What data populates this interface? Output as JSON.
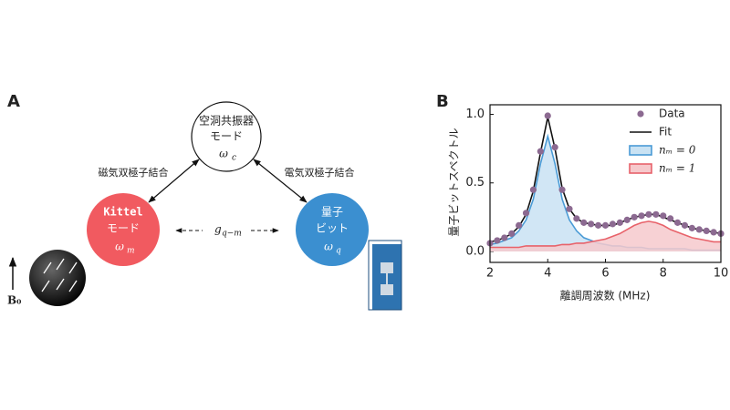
{
  "panel_a": {
    "label": "A",
    "cavity": {
      "line1": "空洞共振器",
      "line2": "モード",
      "symbol": "ω",
      "subscript": "c"
    },
    "kittel": {
      "line1": "Kittel",
      "line2": "モード",
      "symbol": "ω",
      "subscript": "m"
    },
    "qubit": {
      "line1": "量子",
      "line2": "ビット",
      "symbol": "ω",
      "subscript": "q"
    },
    "magnetic_coupling": "磁気双極子結合",
    "electric_coupling": "電気双極子結合",
    "g": {
      "symbol": "g",
      "subscript": "q−m"
    },
    "field": "B₀"
  },
  "chart_data": {
    "type": "line",
    "panel_label": "B",
    "xlabel": "離調周波数 (MHz)",
    "ylabel": "量子ビットスペクトル",
    "x": [
      2,
      2.25,
      2.5,
      2.75,
      3,
      3.25,
      3.5,
      3.75,
      4,
      4.25,
      4.5,
      4.75,
      5,
      5.25,
      5.5,
      5.75,
      6,
      6.25,
      6.5,
      6.75,
      7,
      7.25,
      7.5,
      7.75,
      8,
      8.25,
      8.5,
      8.75,
      9,
      9.25,
      9.5,
      9.75,
      10
    ],
    "series": [
      {
        "name": "Data",
        "style": "scatter",
        "color": "#8c6a91",
        "values": [
          0.06,
          0.08,
          0.1,
          0.13,
          0.19,
          0.28,
          0.45,
          0.73,
          0.99,
          0.76,
          0.45,
          0.31,
          0.24,
          0.21,
          0.2,
          0.19,
          0.19,
          0.2,
          0.21,
          0.23,
          0.25,
          0.26,
          0.27,
          0.27,
          0.26,
          0.24,
          0.21,
          0.19,
          0.17,
          0.16,
          0.15,
          0.14,
          0.13
        ]
      },
      {
        "name": "Fit",
        "style": "line",
        "color": "#111111",
        "values": [
          0.07,
          0.08,
          0.1,
          0.13,
          0.18,
          0.27,
          0.44,
          0.72,
          0.98,
          0.75,
          0.46,
          0.31,
          0.24,
          0.21,
          0.2,
          0.19,
          0.19,
          0.19,
          0.21,
          0.23,
          0.25,
          0.26,
          0.27,
          0.27,
          0.25,
          0.23,
          0.21,
          0.19,
          0.17,
          0.16,
          0.15,
          0.14,
          0.13
        ]
      },
      {
        "name": "nₘ = 0",
        "style": "area",
        "color": "#4a9bd6",
        "fill": "#c9e2f3",
        "values": [
          0.05,
          0.06,
          0.08,
          0.1,
          0.15,
          0.23,
          0.38,
          0.64,
          0.84,
          0.64,
          0.38,
          0.23,
          0.15,
          0.1,
          0.08,
          0.06,
          0.05,
          0.04,
          0.04,
          0.03,
          0.03,
          0.03,
          0.02,
          0.02,
          0.02,
          0.02,
          0.02,
          0.02,
          0.01,
          0.01,
          0.01,
          0.01,
          0.01
        ]
      },
      {
        "name": "nₘ = 1",
        "style": "area",
        "color": "#e8626a",
        "fill": "#f6c9cc",
        "values": [
          0.03,
          0.03,
          0.03,
          0.03,
          0.03,
          0.04,
          0.04,
          0.04,
          0.04,
          0.04,
          0.05,
          0.05,
          0.06,
          0.06,
          0.07,
          0.08,
          0.09,
          0.11,
          0.13,
          0.16,
          0.19,
          0.21,
          0.22,
          0.21,
          0.19,
          0.16,
          0.14,
          0.12,
          0.1,
          0.09,
          0.08,
          0.07,
          0.07
        ]
      }
    ],
    "xlim": [
      2,
      10
    ],
    "xticks": [
      2,
      4,
      6,
      8,
      10
    ],
    "ylim": [
      -0.08,
      1.07
    ],
    "yticks": [
      {
        "value": 0,
        "label": "0.0"
      },
      0.5,
      {
        "value": 1,
        "label": "1.0"
      }
    ],
    "legend": "upper right"
  }
}
